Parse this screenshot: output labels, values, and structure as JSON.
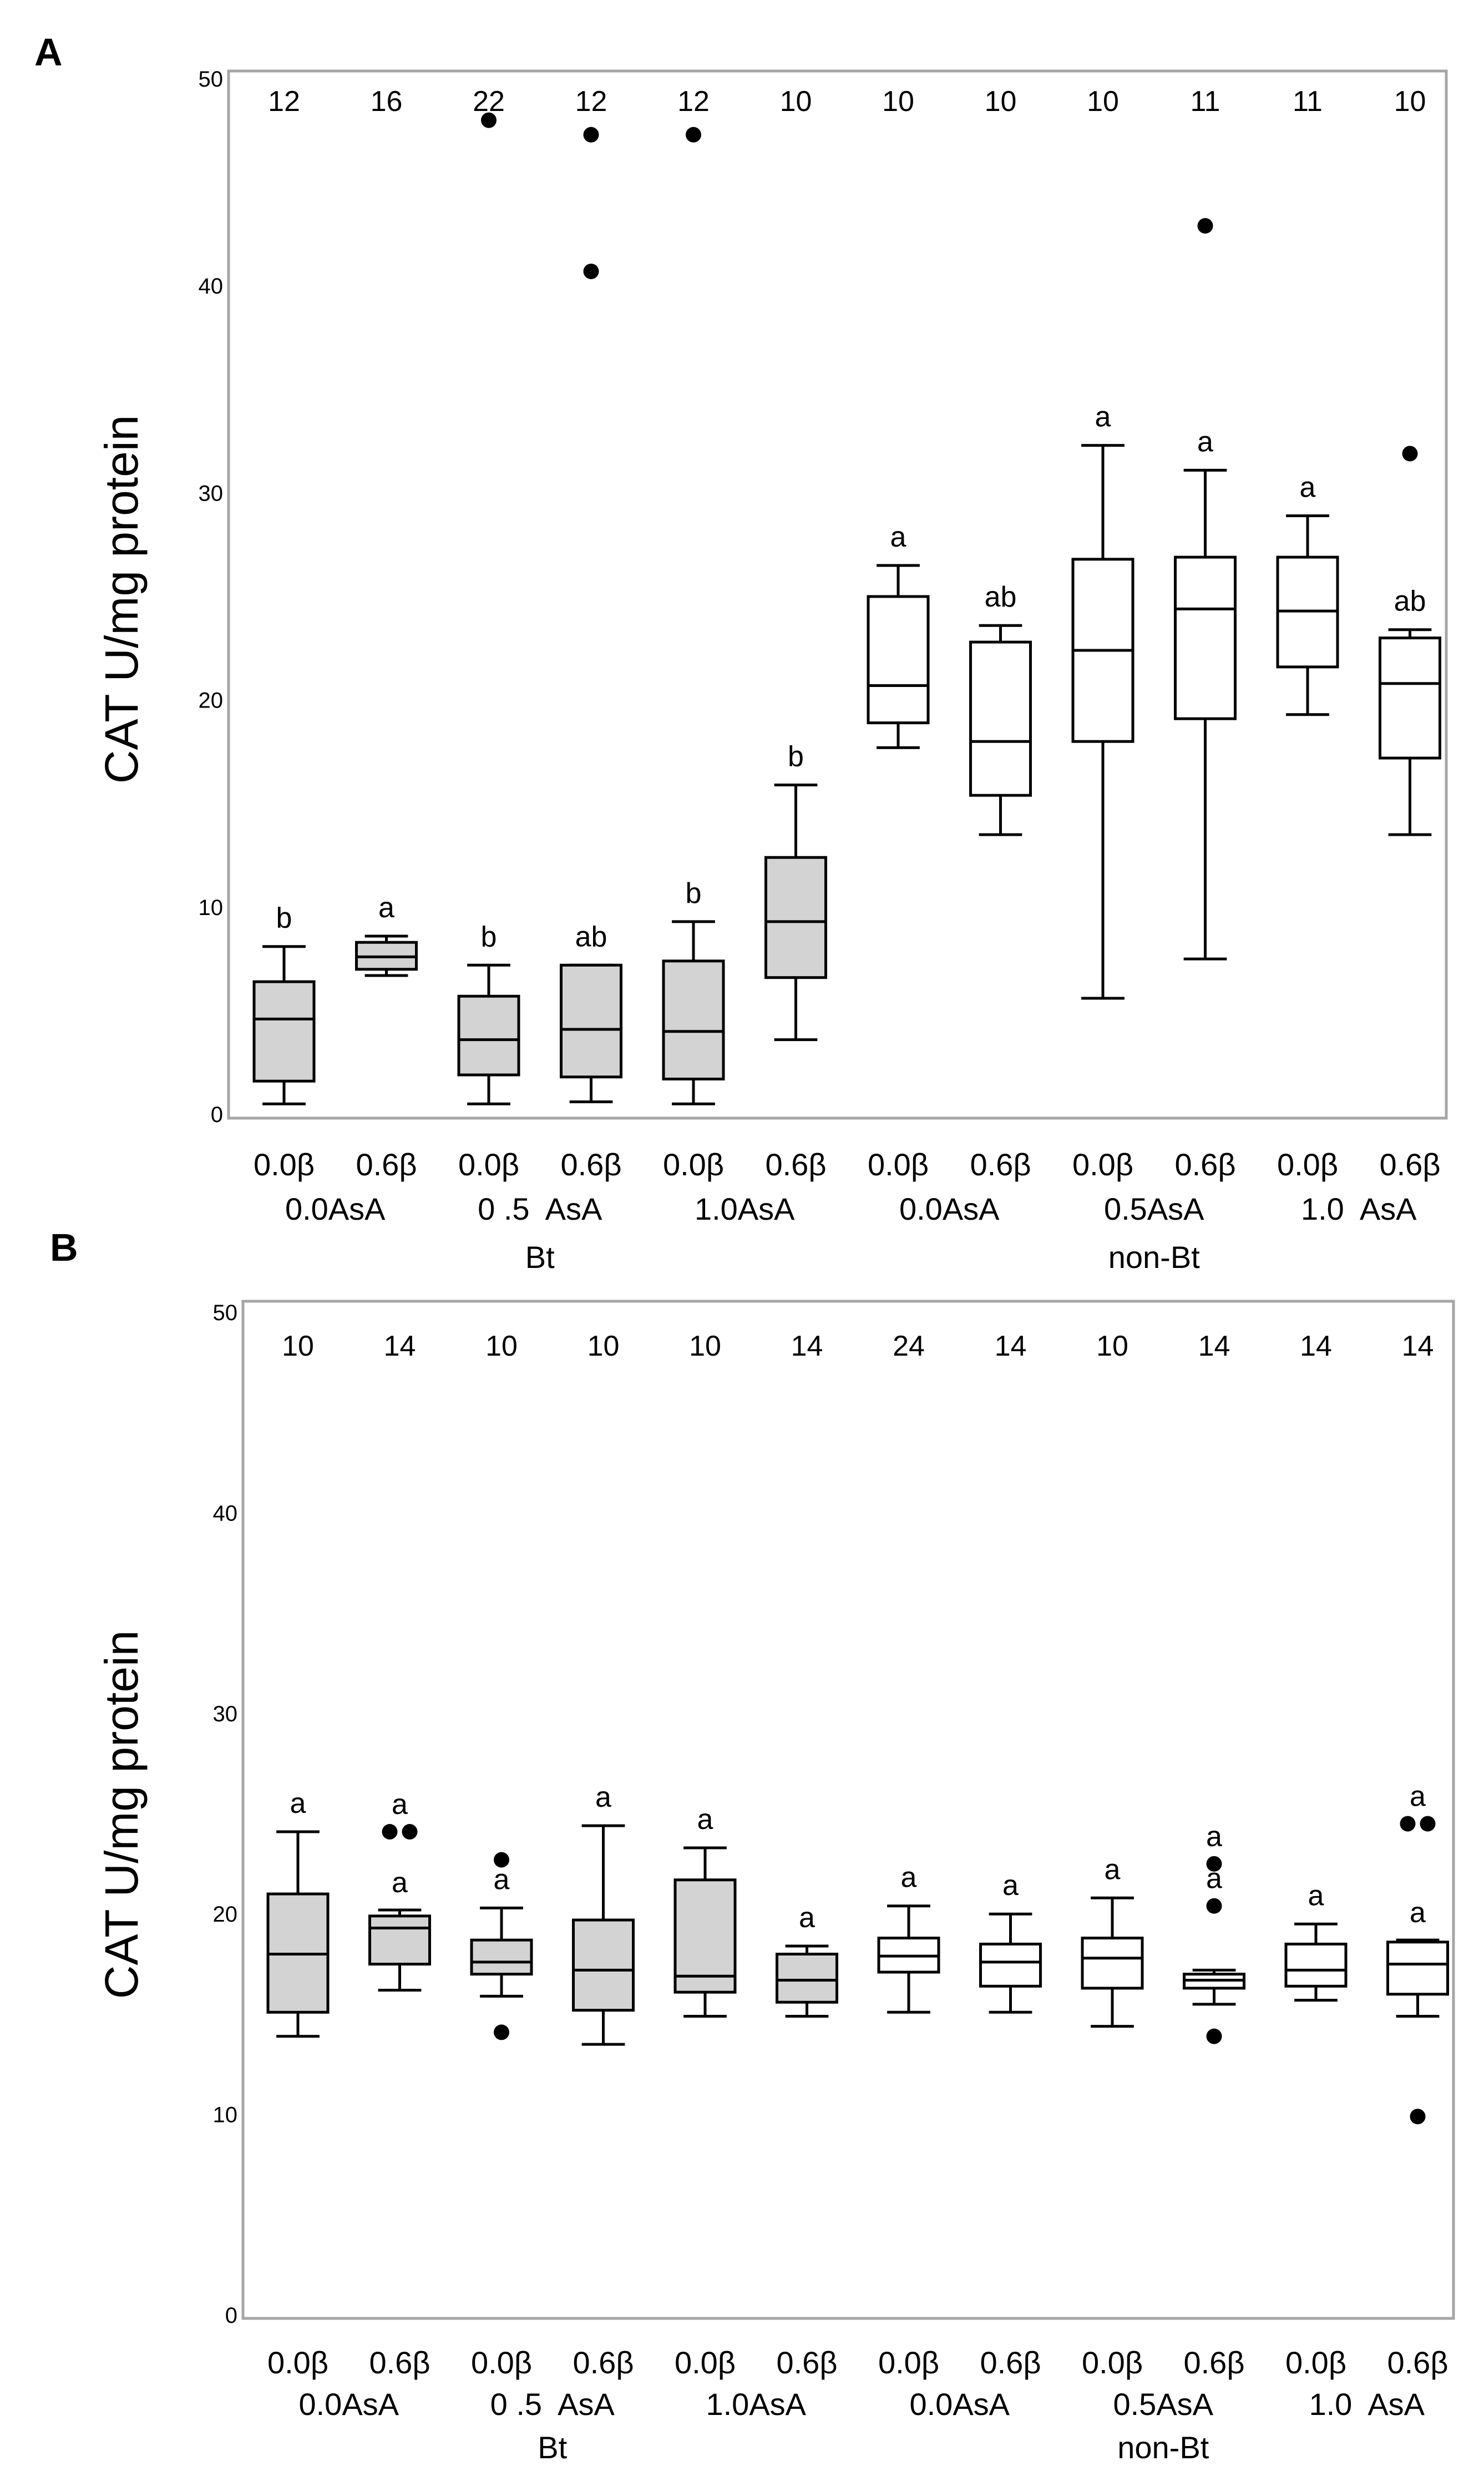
{
  "chart_data": [
    {
      "type": "box",
      "panel_label": "A",
      "ylabel": "CAT U/mg protein",
      "ylim": [
        0,
        50
      ],
      "yticks": [
        "0",
        "10",
        "20",
        "30",
        "40",
        "50"
      ],
      "groups": [
        {
          "label": "Bt",
          "asa_labels": [
            "0.0AsA",
            "0 .5  AsA",
            "1.0AsA"
          ]
        },
        {
          "label": "non-Bt",
          "asa_labels": [
            "0.0AsA",
            "0.5AsA",
            "1.0  AsA"
          ]
        }
      ],
      "boxes": [
        {
          "category": "0.0β",
          "n": "12",
          "letter": "b",
          "fill": "#d3d3d3",
          "whisker_low": 0.5,
          "q1": 1.6,
          "median": 4.6,
          "q3": 6.4,
          "whisker_high": 8.1,
          "outliers": []
        },
        {
          "category": "0.6β",
          "n": "16",
          "letter": "a",
          "fill": "#d3d3d3",
          "whisker_low": 6.7,
          "q1": 7.0,
          "median": 7.6,
          "q3": 8.3,
          "whisker_high": 8.6,
          "outliers": []
        },
        {
          "category": "0.0β",
          "n": "22",
          "letter": "b",
          "fill": "#d3d3d3",
          "whisker_low": 0.5,
          "q1": 1.9,
          "median": 3.6,
          "q3": 5.7,
          "whisker_high": 7.2,
          "outliers": [
            48.0
          ]
        },
        {
          "category": "0.6β",
          "n": "12",
          "letter": "ab",
          "fill": "#d3d3d3",
          "whisker_low": 0.6,
          "q1": 1.8,
          "median": 4.1,
          "q3": 7.2,
          "whisker_high": 7.2,
          "outliers": [
            47.3,
            40.7
          ]
        },
        {
          "category": "0.0β",
          "n": "12",
          "letter": "b",
          "fill": "#d3d3d3",
          "whisker_low": 0.5,
          "q1": 1.7,
          "median": 4.0,
          "q3": 7.4,
          "whisker_high": 9.3,
          "outliers": [
            47.3
          ]
        },
        {
          "category": "0.6β",
          "n": "10",
          "letter": "b",
          "fill": "#d3d3d3",
          "whisker_low": 3.6,
          "q1": 6.6,
          "median": 9.3,
          "q3": 12.4,
          "whisker_high": 15.9,
          "outliers": []
        },
        {
          "category": "0.0β",
          "n": "10",
          "letter": "a",
          "fill": "#ffffff",
          "whisker_low": 17.7,
          "q1": 18.9,
          "median": 20.7,
          "q3": 25.0,
          "whisker_high": 26.5,
          "outliers": []
        },
        {
          "category": "0.6β",
          "n": "10",
          "letter": "ab",
          "fill": "#ffffff",
          "whisker_low": 13.5,
          "q1": 15.4,
          "median": 18.0,
          "q3": 22.8,
          "whisker_high": 23.6,
          "outliers": []
        },
        {
          "category": "0.0β",
          "n": "10",
          "letter": "a",
          "fill": "#ffffff",
          "whisker_low": 5.6,
          "q1": 18.0,
          "median": 22.4,
          "q3": 26.8,
          "whisker_high": 32.3,
          "outliers": []
        },
        {
          "category": "0.6β",
          "n": "11",
          "letter": "a",
          "fill": "#ffffff",
          "whisker_low": 7.5,
          "q1": 19.1,
          "median": 24.4,
          "q3": 26.9,
          "whisker_high": 31.1,
          "outliers": [
            42.9
          ]
        },
        {
          "category": "0.0β",
          "n": "11",
          "letter": "a",
          "fill": "#ffffff",
          "whisker_low": 19.3,
          "q1": 21.6,
          "median": 24.3,
          "q3": 26.9,
          "whisker_high": 28.9,
          "outliers": []
        },
        {
          "category": "0.6β",
          "n": "10",
          "letter": "ab",
          "fill": "#ffffff",
          "whisker_low": 13.5,
          "q1": 17.2,
          "median": 20.8,
          "q3": 23.0,
          "whisker_high": 23.4,
          "outliers": [
            31.9
          ]
        }
      ]
    },
    {
      "type": "box",
      "panel_label": "B",
      "ylabel": "CAT U/mg protein",
      "ylim": [
        0,
        50
      ],
      "yticks": [
        "0",
        "10",
        "20",
        "30",
        "40",
        "50"
      ],
      "groups": [
        {
          "label": "Bt",
          "asa_labels": [
            "0.0AsA",
            "0 .5  AsA",
            "1.0AsA"
          ]
        },
        {
          "label": "non-Bt",
          "asa_labels": [
            "0.0AsA",
            "0.5AsA",
            "1.0  AsA"
          ]
        }
      ],
      "boxes": [
        {
          "category": "0.0β",
          "n": "10",
          "letter": "a",
          "fill": "#d3d3d3",
          "whisker_low": 13.9,
          "q1": 15.1,
          "median": 18.0,
          "q3": 21.0,
          "whisker_high": 24.1,
          "outliers": []
        },
        {
          "category": "0.6β",
          "n": "14",
          "letter": "a",
          "fill": "#d3d3d3",
          "letter_high": "a",
          "whisker_low": 16.2,
          "q1": 17.5,
          "median": 19.3,
          "q3": 19.9,
          "whisker_high": 20.2,
          "outliers": [
            24.1,
            24.1
          ]
        },
        {
          "category": "0.0β",
          "n": "10",
          "letter": "a",
          "fill": "#d3d3d3",
          "whisker_low": 15.9,
          "q1": 17.0,
          "median": 17.6,
          "q3": 18.7,
          "whisker_high": 20.3,
          "outliers": [
            22.7,
            14.1
          ]
        },
        {
          "category": "0.6β",
          "n": "10",
          "letter": "a",
          "fill": "#d3d3d3",
          "whisker_low": 13.5,
          "q1": 15.2,
          "median": 17.2,
          "q3": 19.7,
          "whisker_high": 24.4,
          "outliers": []
        },
        {
          "category": "0.0β",
          "n": "10",
          "letter": "a",
          "fill": "#d3d3d3",
          "whisker_low": 14.9,
          "q1": 16.1,
          "median": 16.9,
          "q3": 21.7,
          "whisker_high": 23.3,
          "outliers": []
        },
        {
          "category": "0.6β",
          "n": "14",
          "letter": "a",
          "fill": "#d3d3d3",
          "whisker_low": 14.9,
          "q1": 15.6,
          "median": 16.7,
          "q3": 18.0,
          "whisker_high": 18.4,
          "outliers": []
        },
        {
          "category": "0.0β",
          "n": "24",
          "letter": "a",
          "fill": "#ffffff",
          "whisker_low": 15.1,
          "q1": 17.1,
          "median": 17.9,
          "q3": 18.8,
          "whisker_high": 20.4,
          "outliers": []
        },
        {
          "category": "0.6β",
          "n": "14",
          "letter": "a",
          "fill": "#ffffff",
          "whisker_low": 15.1,
          "q1": 16.4,
          "median": 17.6,
          "q3": 18.5,
          "whisker_high": 20.0,
          "outliers": []
        },
        {
          "category": "0.0β",
          "n": "10",
          "letter": "a",
          "fill": "#ffffff",
          "whisker_low": 14.4,
          "q1": 16.3,
          "median": 17.8,
          "q3": 18.8,
          "whisker_high": 20.8,
          "outliers": []
        },
        {
          "category": "0.6β",
          "n": "14",
          "letter": "a",
          "fill": "#ffffff",
          "letter_high": "a",
          "whisker_low": 15.5,
          "q1": 16.3,
          "median": 16.7,
          "q3": 17.0,
          "whisker_high": 17.2,
          "outliers": [
            22.5,
            20.4,
            13.9
          ]
        },
        {
          "category": "0.0β",
          "n": "14",
          "letter": "a",
          "fill": "#ffffff",
          "whisker_low": 15.7,
          "q1": 16.4,
          "median": 17.2,
          "q3": 18.5,
          "whisker_high": 19.5,
          "outliers": []
        },
        {
          "category": "0.6β",
          "n": "14",
          "letter": "a",
          "fill": "#ffffff",
          "letter_high": "a",
          "whisker_low": 14.9,
          "q1": 16.0,
          "median": 17.5,
          "q3": 18.6,
          "whisker_high": 18.7,
          "outliers": [
            24.5,
            24.5,
            9.9
          ]
        }
      ]
    }
  ]
}
